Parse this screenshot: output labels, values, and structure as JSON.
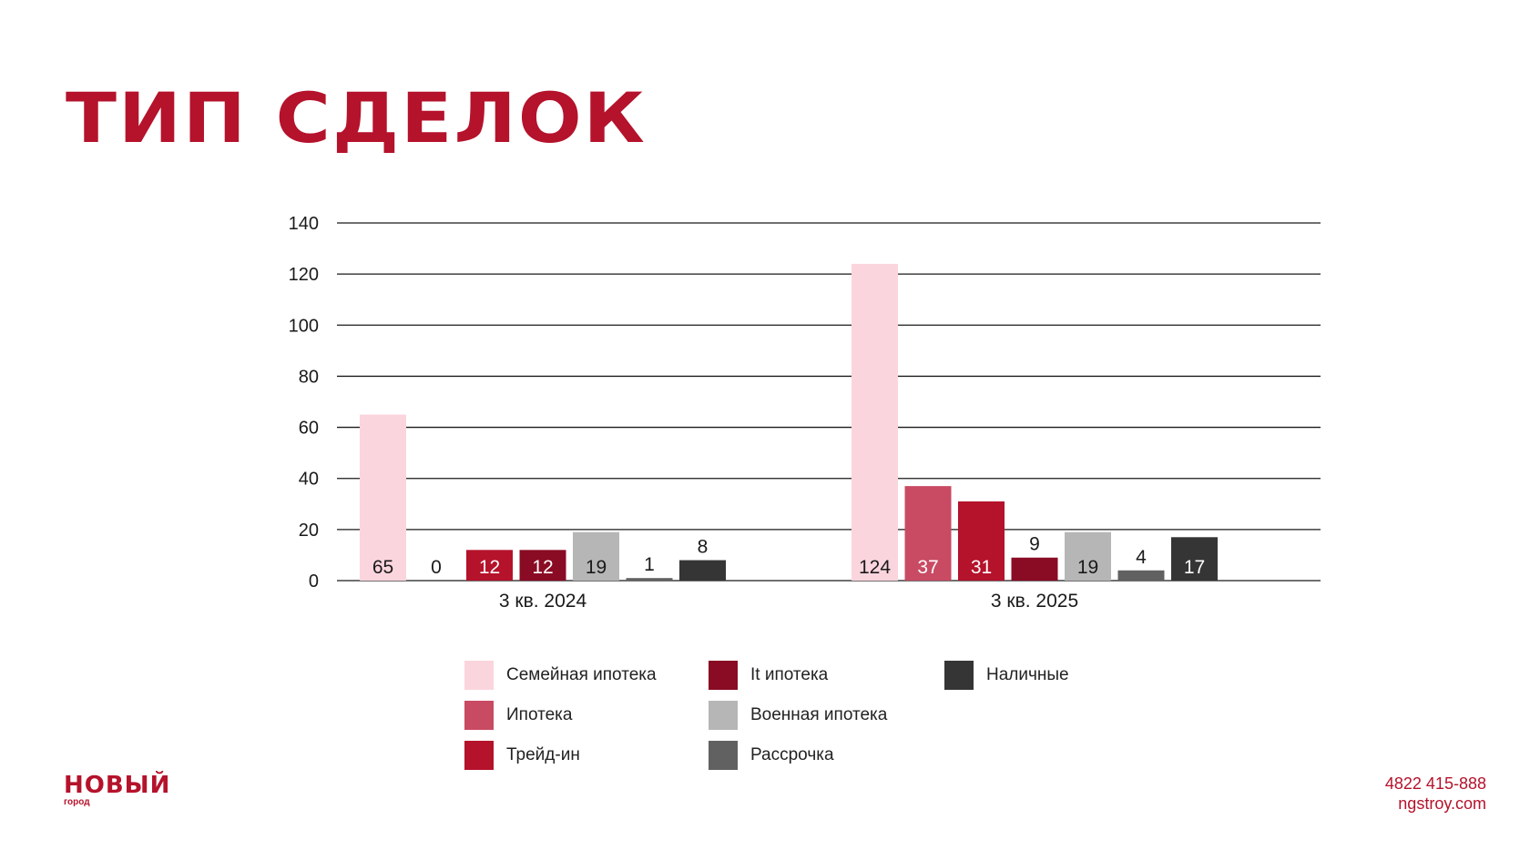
{
  "page": {
    "title": "ТИП СДЕЛОК",
    "brand": {
      "name": "НОВЫЙ",
      "subtitle": "город"
    },
    "contacts": {
      "phone": "4822 415-888",
      "website": "ngstroy.com"
    }
  },
  "chart_data": {
    "type": "bar",
    "categories": [
      "3 кв. 2024",
      "3 кв. 2025"
    ],
    "series": [
      {
        "name": "Семейная ипотека",
        "values": [
          65,
          124
        ],
        "color": "#fbd5dd"
      },
      {
        "name": "Ипотека",
        "values": [
          0,
          37
        ],
        "color": "#c94a63"
      },
      {
        "name": "Трейд-ин",
        "values": [
          12,
          31
        ],
        "color": "#b5122b"
      },
      {
        "name": "It ипотека",
        "values": [
          12,
          9
        ],
        "color": "#8a0b24"
      },
      {
        "name": "Военная ипотека",
        "values": [
          19,
          19
        ],
        "color": "#b6b6b6"
      },
      {
        "name": "Рассрочка",
        "values": [
          1,
          4
        ],
        "color": "#616161"
      },
      {
        "name": "Наличные",
        "values": [
          8,
          17
        ],
        "color": "#353535"
      }
    ],
    "ylim": [
      0,
      140
    ],
    "yticks": [
      0,
      20,
      40,
      60,
      80,
      100,
      120,
      140
    ],
    "grid": true,
    "legend": "bottom",
    "data_labels": true
  }
}
